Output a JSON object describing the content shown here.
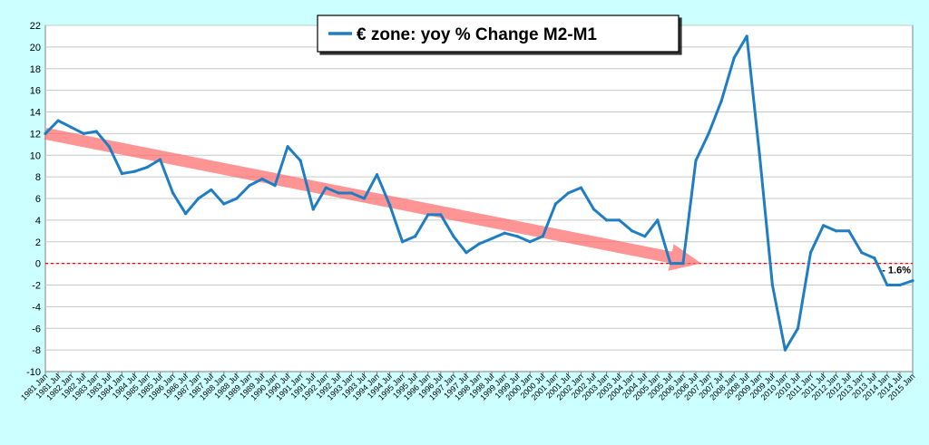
{
  "chart_data": {
    "type": "line",
    "title": "€ zone: yoy % Change M2-M1",
    "xlabel": "",
    "ylabel": "",
    "ylim": [
      -10,
      22
    ],
    "yticks": [
      -10,
      -8,
      -6,
      -4,
      -2,
      0,
      2,
      4,
      6,
      8,
      10,
      12,
      14,
      16,
      18,
      20,
      22
    ],
    "xlim": [
      "1981 Jan",
      "2015 Jan"
    ],
    "x_tick_labels": [
      "1981 Jan",
      "1981 Jul",
      "1982 Jan",
      "1982 Jul",
      "1983 Jan",
      "1983 Jul",
      "1984 Jan",
      "1984 Jul",
      "1985 Jan",
      "1985 Jul",
      "1986 Jan",
      "1986 Jul",
      "1987 Jan",
      "1987 Jul",
      "1988 Jan",
      "1988 Jul",
      "1989 Jan",
      "1989 Jul",
      "1990 Jan",
      "1990 Jul",
      "1991 Jan",
      "1991 Jul",
      "1992 Jan",
      "1992 Jul",
      "1993 Jan",
      "1993 Jul",
      "1994 Jan",
      "1994 Jul",
      "1995 Jan",
      "1995 Jul",
      "1996 Jan",
      "1996 Jul",
      "1997 Jan",
      "1997 Jul",
      "1998 Jan",
      "1998 Jul",
      "1999 Jan",
      "1999 Jul",
      "2000 Jan",
      "2000 Jul",
      "2001 Jan",
      "2001 Jul",
      "2002 Jan",
      "2002 Jul",
      "2003 Jan",
      "2003 Jul",
      "2004 Jan",
      "2004 Jul",
      "2005 Jan",
      "2005 Jul",
      "2006 Jan",
      "2006 Jul",
      "2007 Jan",
      "2007 Jul",
      "2008 Jan",
      "2008 Jul",
      "2009 Jan",
      "2009 Jul",
      "2010 Jan",
      "2010 Jul",
      "2011 Jan",
      "2011 Jul",
      "2012 Jan",
      "2012 Jul",
      "2013 Jan",
      "2013 Jul",
      "2014 Jan",
      "2014 Jul",
      "2015 Jan"
    ],
    "grid": true,
    "legend": "top-center",
    "colors": {
      "background": "#ccffff",
      "plot_area": "#ffffff",
      "gridline": "#c8c8c8",
      "series": "#1f7ec3",
      "zero_line": "#ff0000",
      "trend_arrow": "#ff6666"
    },
    "series": [
      {
        "name": "€ zone: yoy % Change M2-M1",
        "x": [
          "1981 Jan",
          "1981 Jul",
          "1982 Jan",
          "1982 Jul",
          "1983 Jan",
          "1983 Jul",
          "1984 Jan",
          "1984 Jul",
          "1985 Jan",
          "1985 Jul",
          "1986 Jan",
          "1986 Jul",
          "1987 Jan",
          "1987 Jul",
          "1988 Jan",
          "1988 Jul",
          "1989 Jan",
          "1989 Jul",
          "1990 Jan",
          "1990 Jul",
          "1991 Jan",
          "1991 Jul",
          "1992 Jan",
          "1992 Jul",
          "1993 Jan",
          "1993 Jul",
          "1994 Jan",
          "1994 Jul",
          "1995 Jan",
          "1995 Jul",
          "1996 Jan",
          "1996 Jul",
          "1997 Jan",
          "1997 Jul",
          "1998 Jan",
          "1998 Jul",
          "1999 Jan",
          "1999 Jul",
          "2000 Jan",
          "2000 Jul",
          "2001 Jan",
          "2001 Jul",
          "2002 Jan",
          "2002 Jul",
          "2003 Jan",
          "2003 Jul",
          "2004 Jan",
          "2004 Jul",
          "2005 Jan",
          "2005 Jul",
          "2006 Jan",
          "2006 Jul",
          "2007 Jan",
          "2007 Jul",
          "2008 Jan",
          "2008 Jul",
          "2009 Jan",
          "2009 Jul",
          "2010 Jan",
          "2010 Jul",
          "2011 Jan",
          "2011 Jul",
          "2012 Jan",
          "2012 Jul",
          "2013 Jan",
          "2013 Jul",
          "2014 Jan",
          "2014 Jul",
          "2015 Jan"
        ],
        "values": [
          12.0,
          13.2,
          12.6,
          12.0,
          12.2,
          10.8,
          8.3,
          8.5,
          8.9,
          9.6,
          6.5,
          4.6,
          6.0,
          6.8,
          5.5,
          6.0,
          7.2,
          7.8,
          7.2,
          10.8,
          9.5,
          5.0,
          7.0,
          6.5,
          6.5,
          6.0,
          8.2,
          5.4,
          2.0,
          2.5,
          4.5,
          4.5,
          2.5,
          1.0,
          1.8,
          2.3,
          2.8,
          2.5,
          2.0,
          2.5,
          5.5,
          6.5,
          7.0,
          5.0,
          4.0,
          4.0,
          3.0,
          2.5,
          4.0,
          0.0,
          0.0,
          9.5,
          12.0,
          15.0,
          19.0,
          21.0,
          10.0,
          -2.0,
          -8.0,
          -6.0,
          1.0,
          3.5,
          3.0,
          3.0,
          1.0,
          0.5,
          -2.0,
          -2.0,
          -1.6
        ]
      }
    ],
    "annotations": [
      {
        "text": "- 1.6%",
        "x": "2015 Jan",
        "y": -1.6
      }
    ],
    "trend_arrow": {
      "from": [
        "1981 Jan",
        12.0
      ],
      "to": [
        "2006 Jul",
        0.0
      ]
    }
  }
}
